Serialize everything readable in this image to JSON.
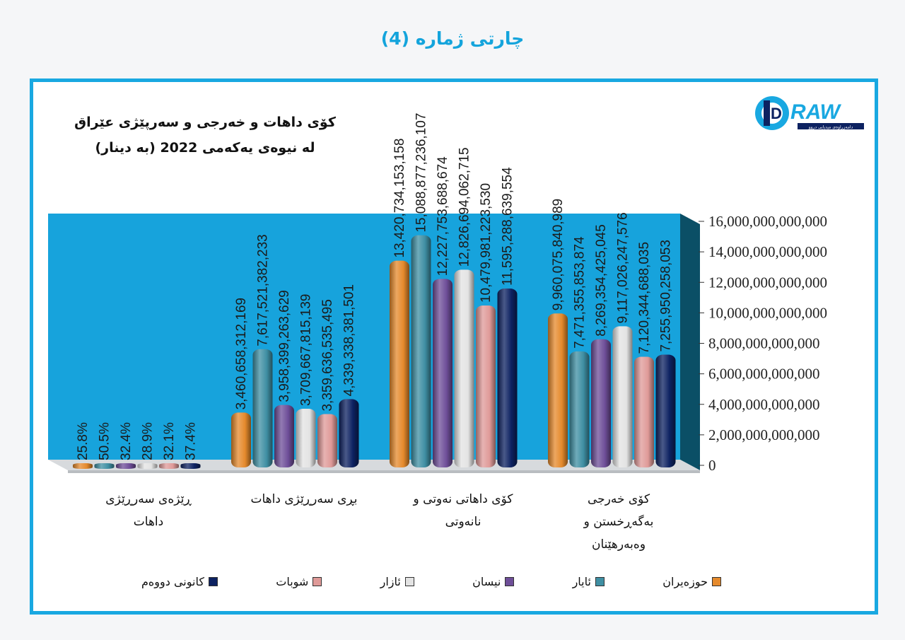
{
  "page_title": "چارتی ژمارە (4)",
  "logo": {
    "text": "RAW",
    "letter": "D",
    "tagline": "دامەزراوەی میدیایی دروو"
  },
  "chart_data": {
    "type": "bar",
    "title_lines": [
      "کۆی داهات و خەرجی و سەرپێژی عێراق",
      "لە نیوەی یەکەمی 2022 (بە دینار)"
    ],
    "categories": [
      [
        "ڕێژەی سەرڕێژی",
        "داهات"
      ],
      [
        "بڕی سەرڕێژی داهات"
      ],
      [
        "کۆی داهاتی نەوتی و",
        "نانەوتی"
      ],
      [
        "کۆی خەرجی",
        "بەگەڕخستن و",
        "وەبەرهێنان"
      ]
    ],
    "series": [
      {
        "name": "حوزەیران",
        "color": "#e58a2c",
        "values": [
          25.8,
          3460658312169,
          13420734153158,
          9960075840989
        ],
        "labels": [
          "25.8%",
          "3,460,658,312,169",
          "13,420,734,153,158",
          "9,960,075,840,989"
        ]
      },
      {
        "name": "ئایار",
        "color": "#3f8fa3",
        "values": [
          50.5,
          7617521382233,
          15088877236107,
          7471355853874
        ],
        "labels": [
          "50.5%",
          "7,617,521,382,233",
          "15,088,877,236,107",
          "7,471,355,853,874"
        ]
      },
      {
        "name": "نیسان",
        "color": "#6e4e98",
        "values": [
          32.4,
          3958399263629,
          12227753688674,
          8269354425045
        ],
        "labels": [
          "32.4%",
          "3,958,399,263,629",
          "12,227,753,688,674",
          "8,269,354,425,045"
        ]
      },
      {
        "name": "ئازار",
        "color": "#e3e3e3",
        "values": [
          28.9,
          3709667815139,
          12826694062715,
          9117026247576
        ],
        "labels": [
          "28.9%",
          "3,709,667,815,139",
          "12,826,694,062,715",
          "9,117,026,247,576"
        ]
      },
      {
        "name": "شوبات",
        "color": "#df9a98",
        "values": [
          32.1,
          3359636535495,
          10479981223530,
          7120344688035
        ],
        "labels": [
          "32.1%",
          "3,359,636,535,495",
          "10,479,981,223,530",
          "7,120,344,688,035"
        ]
      },
      {
        "name": "کانونی دووەم",
        "color": "#0d2261",
        "values": [
          37.4,
          4339338381501,
          11595288639554,
          7255950258053
        ],
        "labels": [
          "37.4%",
          "4,339,338,381,501",
          "11,595,288,639,554",
          "7,255,950,258,053"
        ]
      }
    ],
    "yticks": [
      "0",
      "2,000,000,000,000",
      "4,000,000,000,000",
      "6,000,000,000,000",
      "8,000,000,000,000",
      "10,000,000,000,000",
      "12,000,000,000,000",
      "14,000,000,000,000",
      "16,000,000,000,000"
    ],
    "ylim": [
      0,
      16000000000000
    ],
    "colors": {
      "wall": "#17a3dc",
      "side_wall": "#0b4f66",
      "floor": "#d7dadd"
    }
  }
}
